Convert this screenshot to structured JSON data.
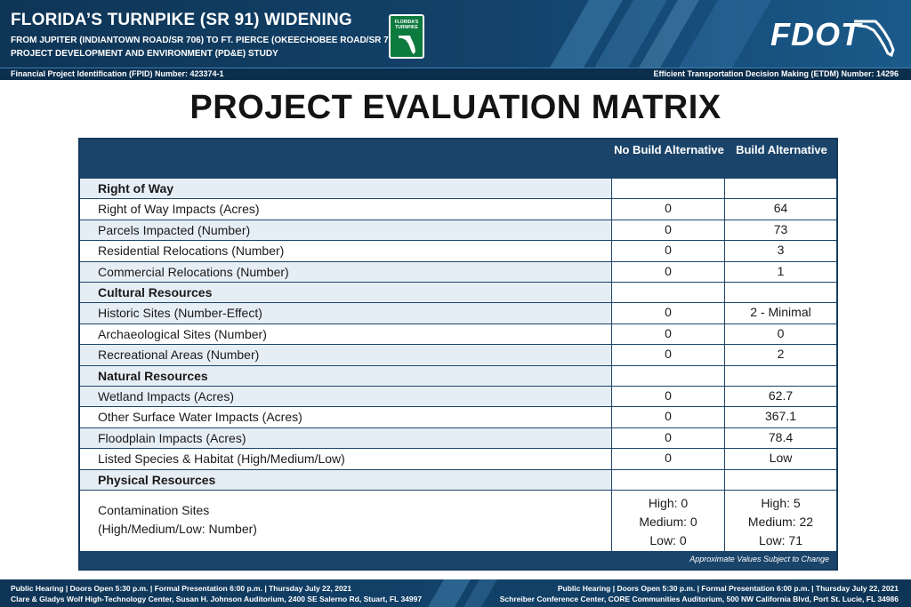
{
  "header": {
    "title": "FLORIDA’S TURNPIKE (SR 91) WIDENING",
    "subtitle_1": "FROM JUPITER (INDIANTOWN ROAD/SR 706) TO FT. PIERCE (OKEECHOBEE ROAD/SR 70)",
    "subtitle_2": "PROJECT DEVELOPMENT AND ENVIRONMENT (PD&E) STUDY",
    "turnpike_logo_text": "FLORIDA'S TURNPIKE",
    "fdot_logo_text": "FDOT",
    "fpid": "Financial Project Identification (FPID) Number: 423374-1",
    "etdm": "Efficient Transportation Decision Making (ETDM) Number: 14296"
  },
  "matrix": {
    "title": "PROJECT EVALUATION MATRIX",
    "col_no_build": "No Build Alternative",
    "col_build": "Build Alternative",
    "note": "Approximate Values Subject to Change",
    "rows": [
      {
        "label": "Right of Way",
        "section": true
      },
      {
        "label": "Right of Way Impacts (Acres)",
        "no_build": "0",
        "build": "64"
      },
      {
        "label": "Parcels Impacted (Number)",
        "no_build": "0",
        "build": "73"
      },
      {
        "label": "Residential Relocations (Number)",
        "no_build": "0",
        "build": "3"
      },
      {
        "label": "Commercial Relocations (Number)",
        "no_build": "0",
        "build": "1"
      },
      {
        "label": "Cultural Resources",
        "section": true
      },
      {
        "label": "Historic Sites (Number-Effect)",
        "no_build": "0",
        "build": "2 - Minimal"
      },
      {
        "label": "Archaeological Sites (Number)",
        "no_build": "0",
        "build": "0"
      },
      {
        "label": "Recreational Areas (Number)",
        "no_build": "0",
        "build": "2"
      },
      {
        "label": "Natural Resources",
        "section": true
      },
      {
        "label": "Wetland Impacts (Acres)",
        "no_build": "0",
        "build": "62.7"
      },
      {
        "label": "Other Surface Water Impacts (Acres)",
        "no_build": "0",
        "build": "367.1"
      },
      {
        "label": "Floodplain Impacts (Acres)",
        "no_build": "0",
        "build": "78.4"
      },
      {
        "label": "Listed Species & Habitat (High/Medium/Low)",
        "no_build": "0",
        "build": "Low"
      },
      {
        "label": "Physical Resources",
        "section": true
      }
    ],
    "contamination": {
      "label_1": "Contamination Sites",
      "label_2": "(High/Medium/Low: Number)",
      "no_build": [
        "High: 0",
        "Medium: 0",
        "Low: 0"
      ],
      "build": [
        "High: 5",
        "Medium: 22",
        "Low: 71"
      ]
    }
  },
  "footer": {
    "left_1": "Public Hearing | Doors Open 5:30 p.m. | Formal Presentation 6:00 p.m. | Thursday July 22, 2021",
    "left_2": "Clare & Gladys Wolf High-Technology Center, Susan H. Johnson Auditorium, 2400 SE Salerno Rd, Stuart, FL 34997",
    "right_1": "Public Hearing | Doors Open 5:30 p.m. | Formal Presentation 6:00 p.m. | Thursday July 22, 2021",
    "right_2": "Schreiber Conference Center, CORE Communities Auditorium, 500 NW California Blvd, Port St. Lucie, FL 34986"
  },
  "colors": {
    "header_bg": "#12426a",
    "table_header_bg": "#1b446a",
    "alt_row_bg": "#e6eef5",
    "turnpike_green": "#0d7a3e"
  }
}
